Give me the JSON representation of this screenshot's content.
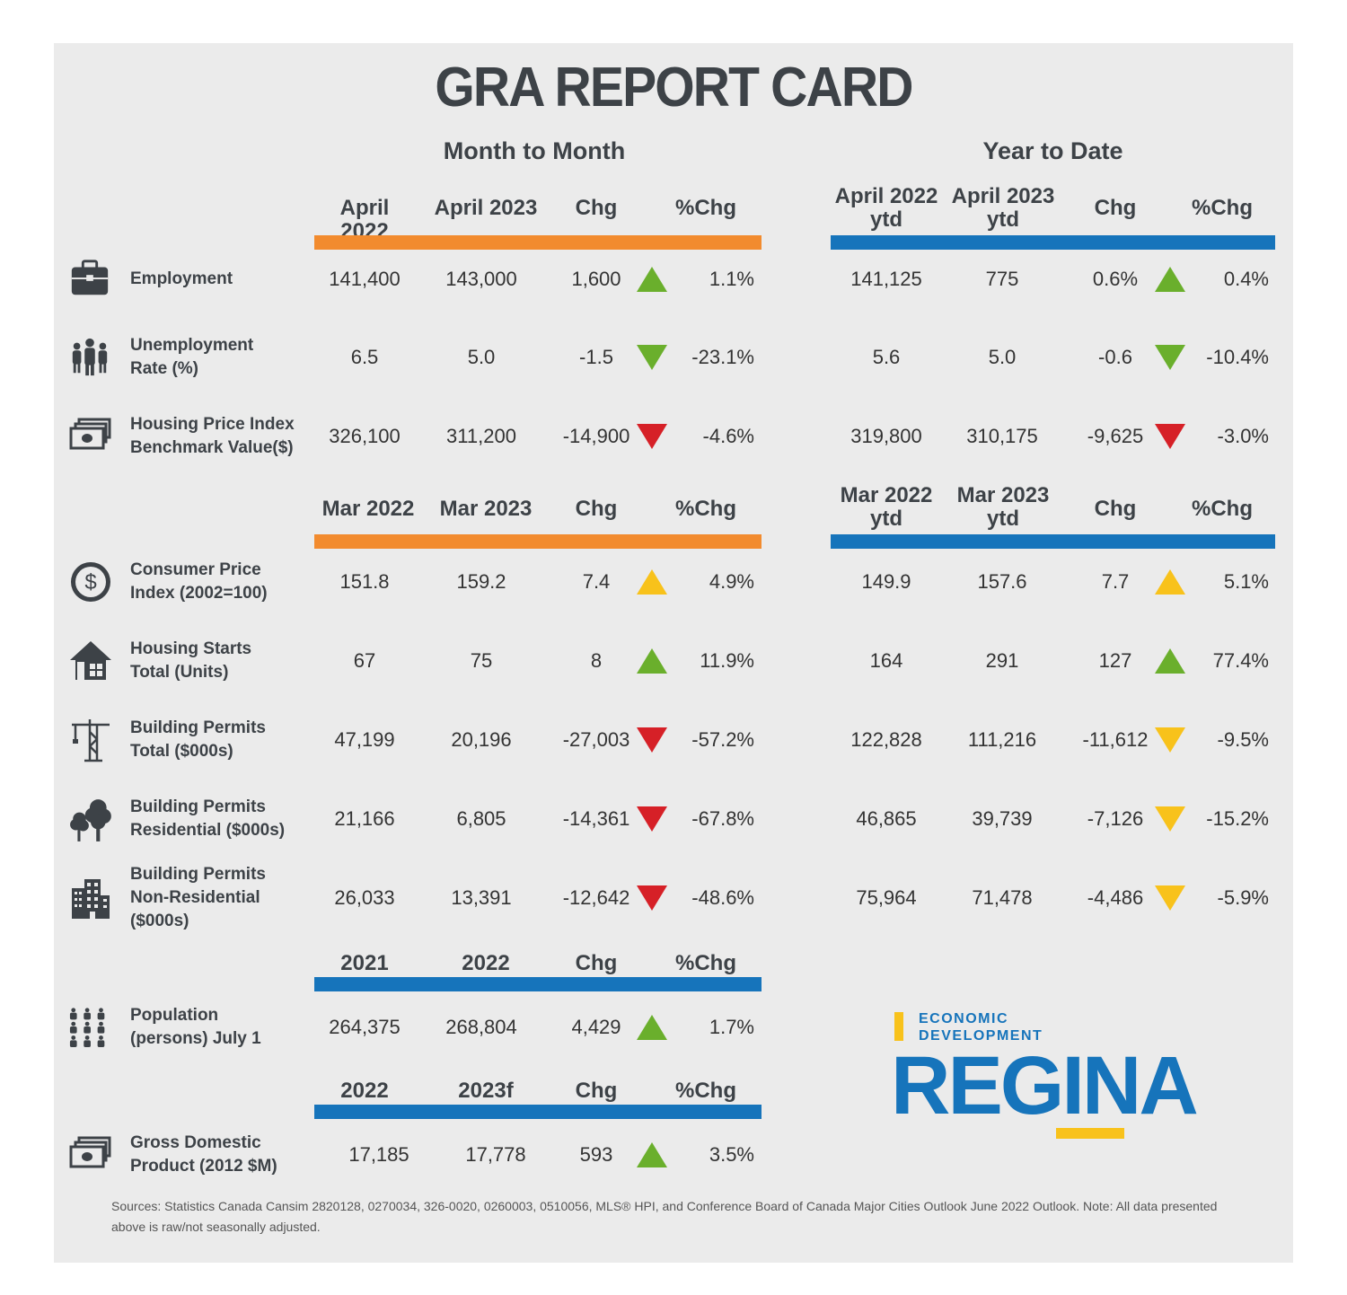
{
  "title": "GRA REPORT CARD",
  "sections": {
    "month_to_month": "Month to Month",
    "year_to_date": "Year to Date"
  },
  "group1": {
    "mtm_headers": [
      "April 2022",
      "April 2023",
      "Chg",
      "%Chg"
    ],
    "ytd_headers": [
      [
        "April 2022",
        "ytd"
      ],
      [
        "April 2023",
        "ytd"
      ],
      "Chg",
      "%Chg"
    ],
    "rows": [
      {
        "label": [
          "Employment"
        ],
        "icon": "briefcase-icon",
        "mtm": [
          "141,400",
          "143,000",
          "1,600",
          "1.1%"
        ],
        "mtm_arrow": "green-up",
        "ytd": [
          "141,125",
          "775",
          "0.6%",
          "0.4%"
        ],
        "ytd_arrow": "green-up"
      },
      {
        "label": [
          "Unemployment",
          "Rate (%)"
        ],
        "icon": "people-icon",
        "mtm": [
          "6.5",
          "5.0",
          "-1.5",
          "-23.1%"
        ],
        "mtm_arrow": "green-down",
        "ytd": [
          "5.6",
          "5.0",
          "-0.6",
          "-10.4%"
        ],
        "ytd_arrow": "green-down"
      },
      {
        "label": [
          "Housing Price Index",
          "Benchmark Value($)"
        ],
        "icon": "money-stack-icon",
        "mtm": [
          "326,100",
          "311,200",
          "-14,900",
          "-4.6%"
        ],
        "mtm_arrow": "red-down",
        "ytd": [
          "319,800",
          "310,175",
          "-9,625",
          "-3.0%"
        ],
        "ytd_arrow": "red-down"
      }
    ]
  },
  "group2": {
    "mtm_headers": [
      "Mar 2022",
      "Mar 2023",
      "Chg",
      "%Chg"
    ],
    "ytd_headers": [
      [
        "Mar 2022",
        "ytd"
      ],
      [
        "Mar 2023",
        "ytd"
      ],
      "Chg",
      "%Chg"
    ],
    "rows": [
      {
        "label": [
          "Consumer Price",
          "Index (2002=100)"
        ],
        "icon": "dollar-coin-icon",
        "mtm": [
          "151.8",
          "159.2",
          "7.4",
          "4.9%"
        ],
        "mtm_arrow": "yellow-up",
        "ytd": [
          "149.9",
          "157.6",
          "7.7",
          "5.1%"
        ],
        "ytd_arrow": "yellow-up"
      },
      {
        "label": [
          "Housing Starts",
          "Total (Units)"
        ],
        "icon": "house-icon",
        "mtm": [
          "67",
          "75",
          "8",
          "11.9%"
        ],
        "mtm_arrow": "green-up",
        "ytd": [
          "164",
          "291",
          "127",
          "77.4%"
        ],
        "ytd_arrow": "green-up"
      },
      {
        "label": [
          "Building Permits",
          "Total ($000s)"
        ],
        "icon": "crane-icon",
        "mtm": [
          "47,199",
          "20,196",
          "-27,003",
          "-57.2%"
        ],
        "mtm_arrow": "red-down",
        "ytd": [
          "122,828",
          "111,216",
          "-11,612",
          "-9.5%"
        ],
        "ytd_arrow": "yellow-down"
      },
      {
        "label": [
          "Building Permits",
          "Residential ($000s)"
        ],
        "icon": "trees-icon",
        "mtm": [
          "21,166",
          "6,805",
          "-14,361",
          "-67.8%"
        ],
        "mtm_arrow": "red-down",
        "ytd": [
          "46,865",
          "39,739",
          "-7,126",
          "-15.2%"
        ],
        "ytd_arrow": "yellow-down"
      },
      {
        "label": [
          "Building Permits",
          "Non-Residential",
          "($000s)"
        ],
        "icon": "office-building-icon",
        "mtm": [
          "26,033",
          "13,391",
          "-12,642",
          "-48.6%"
        ],
        "mtm_arrow": "red-down",
        "ytd": [
          "75,964",
          "71,478",
          "-4,486",
          "-5.9%"
        ],
        "ytd_arrow": "yellow-down"
      }
    ]
  },
  "group3": {
    "headers": [
      "2021",
      "2022",
      "Chg",
      "%Chg"
    ],
    "row": {
      "label": [
        "Population",
        "(persons) July 1"
      ],
      "icon": "population-icon",
      "values": [
        "264,375",
        "268,804",
        "4,429",
        "1.7%"
      ],
      "arrow": "green-up"
    }
  },
  "group4": {
    "headers": [
      "2022",
      "2023f",
      "Chg",
      "%Chg"
    ],
    "row": {
      "label": [
        "Gross Domestic",
        "Product (2012 $M)"
      ],
      "icon": "money-stack-icon",
      "values": [
        "17,185",
        "17,778",
        "593",
        "3.5%"
      ],
      "arrow": "green-up"
    }
  },
  "logo": {
    "line1": "ECONOMIC",
    "line2": "DEVELOPMENT",
    "name": "REGINA"
  },
  "sources": "Sources: Statistics Canada Cansim 2820128, 0270034, 326-0020, 0260003, 0510056, MLS® HPI, and Conference Board of Canada Major Cities Outlook June 2022 Outlook. Note: All data presented above is raw/not seasonally adjusted.",
  "colors": {
    "orange": "#f28b2e",
    "blue": "#1674bb",
    "green": "#6aaf2c",
    "red": "#d62027",
    "yellow": "#f8c21b"
  }
}
